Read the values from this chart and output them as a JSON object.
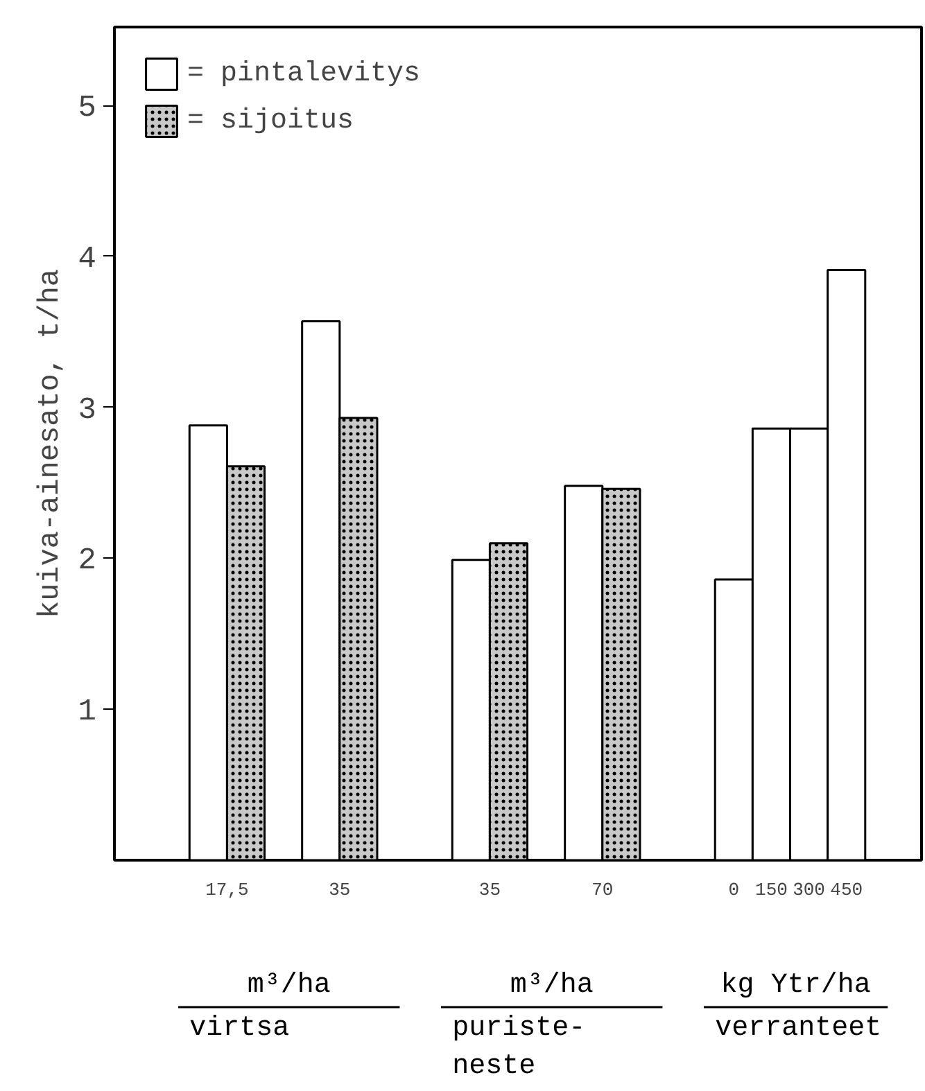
{
  "chart_data": {
    "type": "bar",
    "ylabel": "kuiva-ainesato, t/ha",
    "categories": [
      "17,5",
      "35",
      "35",
      "70",
      "0",
      "150",
      "300",
      "450"
    ],
    "series": [
      {
        "name": "= pintalevitys",
        "color": "#ffffff",
        "values": [
          2.88,
          3.57,
          1.99,
          2.48,
          1.86,
          2.86,
          2.86,
          3.91
        ]
      },
      {
        "name": "= sijoitus",
        "color": "#c8c8c8",
        "values": [
          2.61,
          2.93,
          2.1,
          2.46,
          null,
          null,
          null,
          null
        ]
      }
    ],
    "ylim": [
      0,
      5.52
    ],
    "yticks": [
      1,
      2,
      3,
      4,
      5
    ],
    "grid": false,
    "legend": "top left",
    "annotations": [
      "m³/ha",
      "virtsa",
      "m³/ha",
      "puriste-\nneste",
      "kg Ytr/ha",
      "verranteet"
    ]
  }
}
